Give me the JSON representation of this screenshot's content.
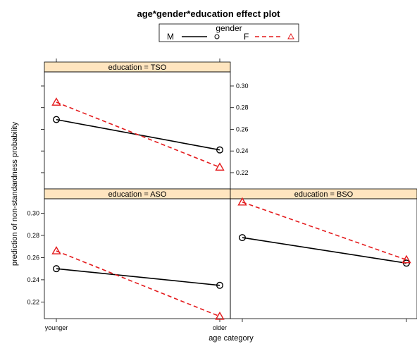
{
  "chart_data": {
    "type": "line",
    "title": "age*gender*education effect plot",
    "xlabel": "age category",
    "ylabel": "prediction of non-standardness probability",
    "categories": [
      "younger",
      "older"
    ],
    "ylim": [
      0.205,
      0.313
    ],
    "yticks": [
      "0.22",
      "0.24",
      "0.26",
      "0.28",
      "0.30"
    ],
    "legend": {
      "title": "gender",
      "position": "top-center",
      "entries": [
        {
          "name": "M",
          "color": "#000000",
          "dash": "solid",
          "marker": "circle"
        },
        {
          "name": "F",
          "color": "#e41a1c",
          "dash": "dashed",
          "marker": "triangle"
        }
      ]
    },
    "panels": [
      {
        "strip": "education = TSO",
        "series": [
          {
            "name": "M",
            "values": [
              0.269,
              0.241
            ]
          },
          {
            "name": "F",
            "values": [
              0.285,
              0.225
            ]
          }
        ]
      },
      {
        "strip": "education = ASO",
        "series": [
          {
            "name": "M",
            "values": [
              0.25,
              0.235
            ]
          },
          {
            "name": "F",
            "values": [
              0.266,
              0.207
            ]
          }
        ]
      },
      {
        "strip": "education = BSO",
        "series": [
          {
            "name": "M",
            "values": [
              0.278,
              0.255
            ]
          },
          {
            "name": "F",
            "values": [
              0.31,
              0.258
            ]
          }
        ]
      }
    ]
  }
}
